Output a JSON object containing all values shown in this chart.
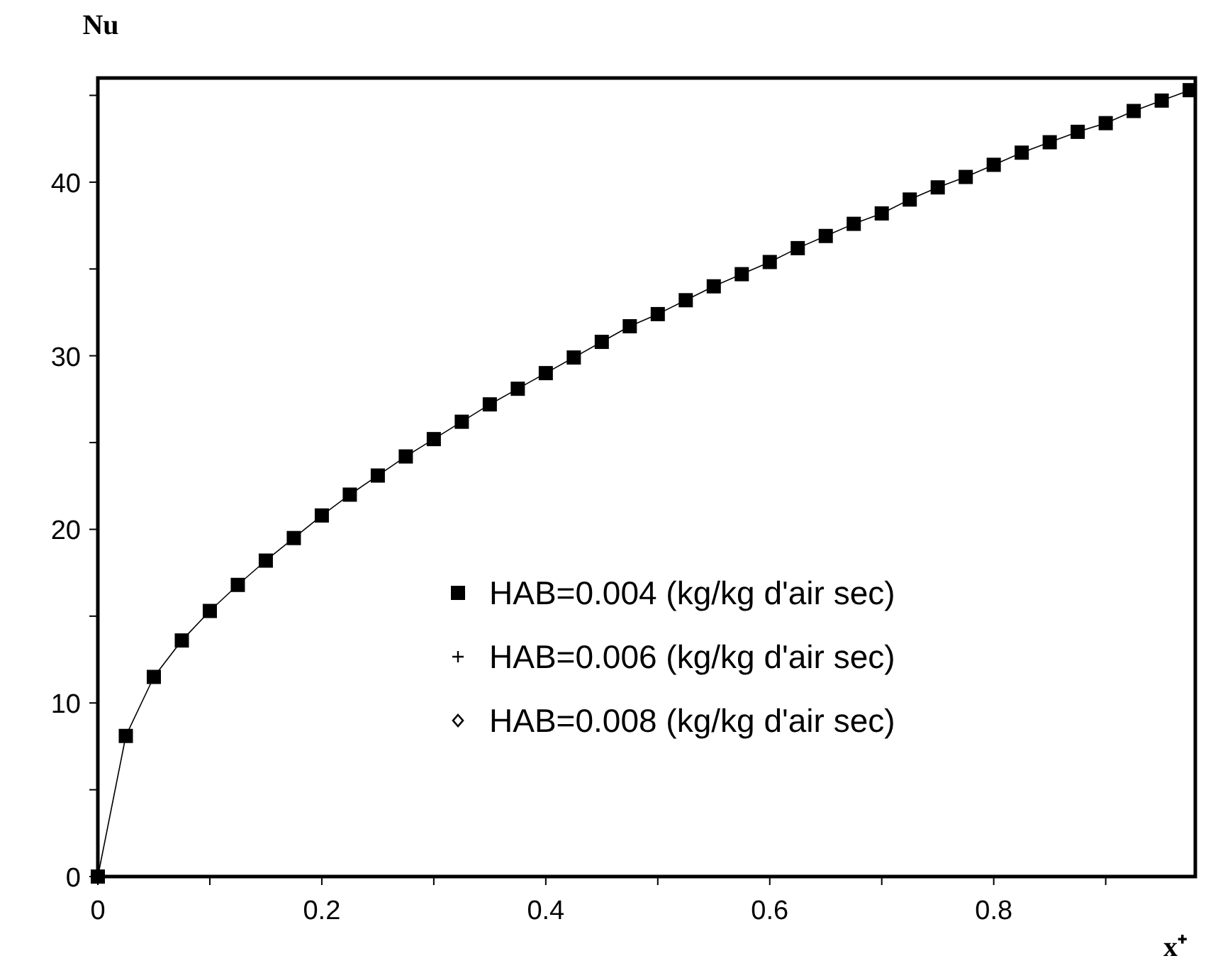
{
  "chart_data": {
    "type": "line",
    "ylabel": "Nu",
    "xlabel": "x⁺",
    "xlim": [
      0,
      0.98
    ],
    "ylim": [
      0,
      46
    ],
    "xticks": [
      0,
      {
        "value": 0.1,
        "label": null
      },
      0.2,
      {
        "value": 0.3,
        "label": null
      },
      0.4,
      {
        "value": 0.5,
        "label": null
      },
      0.6,
      {
        "value": 0.7,
        "label": null
      },
      0.8,
      {
        "value": 0.9,
        "label": null
      }
    ],
    "yticks": [
      0,
      {
        "value": 5,
        "label": null
      },
      10,
      {
        "value": 15,
        "label": null
      },
      20,
      {
        "value": 25,
        "label": null
      },
      30,
      {
        "value": 35,
        "label": null
      },
      40,
      {
        "value": 45,
        "label": null
      }
    ],
    "x": [
      0,
      0.025,
      0.05,
      0.075,
      0.1,
      0.125,
      0.15,
      0.175,
      0.2,
      0.225,
      0.25,
      0.275,
      0.3,
      0.325,
      0.35,
      0.375,
      0.4,
      0.425,
      0.45,
      0.475,
      0.5,
      0.525,
      0.55,
      0.575,
      0.6,
      0.625,
      0.65,
      0.675,
      0.7,
      0.725,
      0.75,
      0.775,
      0.8,
      0.825,
      0.85,
      0.875,
      0.9,
      0.925,
      0.95,
      0.975
    ],
    "legend": "bottom right",
    "grid": false,
    "line_style": "solid",
    "series": [
      {
        "name": "HAB=0.004 (kg/kg d'air sec)",
        "color": "#000000",
        "marker": "square",
        "values": [
          0,
          8.1,
          11.5,
          13.6,
          15.3,
          16.8,
          18.2,
          19.5,
          20.8,
          22.0,
          23.1,
          24.2,
          25.2,
          26.2,
          27.2,
          28.1,
          29.0,
          29.9,
          30.8,
          31.7,
          32.4,
          33.2,
          34.0,
          34.7,
          35.4,
          36.2,
          36.9,
          37.6,
          38.2,
          39.0,
          39.7,
          40.3,
          41.0,
          41.7,
          42.3,
          42.9,
          43.4,
          44.1,
          44.7,
          45.3
        ]
      },
      {
        "name": "HAB=0.006 (kg/kg d'air sec)",
        "color": "#000000",
        "marker": "cross",
        "values": [
          null,
          null,
          null,
          null,
          null,
          null,
          null,
          null,
          null,
          null,
          null,
          null,
          null,
          null,
          null,
          null,
          null,
          null,
          null,
          null,
          null,
          null,
          null,
          null,
          null,
          null,
          null,
          null,
          null,
          null,
          null,
          null,
          null,
          null,
          null,
          null,
          null,
          null,
          null,
          null
        ]
      },
      {
        "name": "HAB=0.008 (kg/kg d'air sec)",
        "color": "#000000",
        "marker": "diamond",
        "values": [
          null,
          null,
          null,
          null,
          null,
          null,
          null,
          null,
          null,
          null,
          null,
          null,
          null,
          null,
          null,
          null,
          null,
          null,
          null,
          null,
          null,
          null,
          null,
          null,
          null,
          null,
          null,
          null,
          null,
          null,
          null,
          null,
          null,
          null,
          null,
          null,
          null,
          null,
          null,
          null
        ]
      }
    ]
  }
}
